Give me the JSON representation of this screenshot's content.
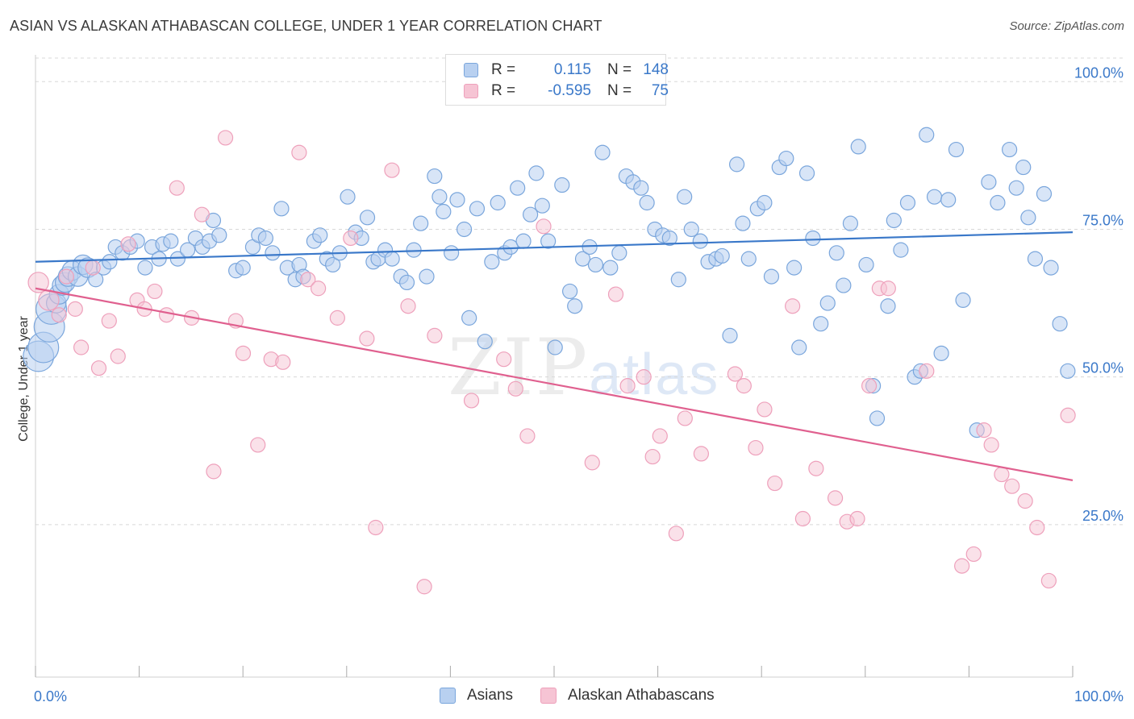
{
  "title": "ASIAN VS ALASKAN ATHABASCAN COLLEGE, UNDER 1 YEAR CORRELATION CHART",
  "source": "Source: ZipAtlas.com",
  "watermark": {
    "main": "ZIP",
    "sub": "atlas"
  },
  "colors": {
    "blue": "#3a78c9",
    "blue_fill": "#b8d0f0",
    "blue_stroke": "#7aa6dc",
    "pink": "#e0608f",
    "pink_fill": "#f6c4d4",
    "pink_stroke": "#eea0bb",
    "grid": "#d8d8d8"
  },
  "legend": {
    "rows": [
      {
        "r_label": "R =",
        "r_value": "0.115",
        "n_label": "N =",
        "n_value": "148"
      },
      {
        "r_label": "R =",
        "r_value": "-0.595",
        "n_label": "N =",
        "n_value": "75"
      }
    ]
  },
  "bottom_legend": [
    "Asians",
    "Alaskan Athabascans"
  ],
  "chart_data": {
    "type": "scatter",
    "title": "ASIAN VS ALASKAN ATHABASCAN COLLEGE, UNDER 1 YEAR CORRELATION CHART",
    "xlabel": "",
    "ylabel": "College, Under 1 year",
    "xlim": [
      0,
      100
    ],
    "ylim": [
      0,
      104
    ],
    "x_ticks": [
      "0.0%",
      "100.0%"
    ],
    "y_ticks": [
      {
        "value": 25,
        "label": "25.0%"
      },
      {
        "value": 50,
        "label": "50.0%"
      },
      {
        "value": 75,
        "label": "75.0%"
      },
      {
        "value": 100,
        "label": "100.0%"
      }
    ],
    "grid": true,
    "legend_position": "top-center",
    "series": [
      {
        "name": "Asians",
        "R": 0.115,
        "N": 148,
        "trend": [
          [
            0,
            69.5
          ],
          [
            100,
            74.5
          ]
        ],
        "points": [
          [
            0.3,
            53.5
          ],
          [
            0.8,
            55
          ],
          [
            1.4,
            58.5
          ],
          [
            1.6,
            61.5
          ],
          [
            2.1,
            62.5
          ],
          [
            2.4,
            64
          ],
          [
            2.7,
            65.5
          ],
          [
            3,
            66
          ],
          [
            3.3,
            67
          ],
          [
            3.7,
            68
          ],
          [
            4.3,
            67
          ],
          [
            4.8,
            69
          ],
          [
            5.3,
            68.5
          ],
          [
            6.1,
            66.5
          ],
          [
            6.9,
            68.5
          ],
          [
            7.5,
            69.5
          ],
          [
            8.1,
            72
          ],
          [
            8.8,
            71
          ],
          [
            9.6,
            72
          ],
          [
            10.3,
            73
          ],
          [
            11.1,
            68.5
          ],
          [
            11.8,
            72
          ],
          [
            12.5,
            70
          ],
          [
            12.9,
            72.5
          ],
          [
            13.7,
            73
          ],
          [
            14.4,
            70
          ],
          [
            15.4,
            71.5
          ],
          [
            16.2,
            73.5
          ],
          [
            16.9,
            72
          ],
          [
            17.6,
            73
          ],
          [
            18,
            76.5
          ],
          [
            18.6,
            74
          ],
          [
            20.3,
            68
          ],
          [
            21,
            68.5
          ],
          [
            22,
            72
          ],
          [
            22.6,
            74
          ],
          [
            23.3,
            73.5
          ],
          [
            24,
            71
          ],
          [
            24.9,
            78.5
          ],
          [
            25.5,
            68.5
          ],
          [
            26.3,
            66.5
          ],
          [
            26.7,
            69
          ],
          [
            27.1,
            67
          ],
          [
            28.2,
            73
          ],
          [
            28.8,
            74
          ],
          [
            29.5,
            70
          ],
          [
            30.1,
            69
          ],
          [
            30.8,
            71
          ],
          [
            31.6,
            80.5
          ],
          [
            32.4,
            74.5
          ],
          [
            33,
            73.5
          ],
          [
            33.6,
            77
          ],
          [
            34.2,
            69.5
          ],
          [
            34.7,
            70
          ],
          [
            35.4,
            71.5
          ],
          [
            36.1,
            70
          ],
          [
            37,
            67
          ],
          [
            37.6,
            66
          ],
          [
            38.3,
            71.5
          ],
          [
            39,
            76
          ],
          [
            39.6,
            67
          ],
          [
            40.4,
            84
          ],
          [
            40.9,
            80.5
          ],
          [
            41.3,
            78
          ],
          [
            42.1,
            71
          ],
          [
            42.7,
            80
          ],
          [
            43.4,
            75
          ],
          [
            43.9,
            60
          ],
          [
            44.7,
            78.5
          ],
          [
            45.5,
            56
          ],
          [
            46.2,
            69.5
          ],
          [
            46.8,
            79.5
          ],
          [
            47.5,
            71
          ],
          [
            48.1,
            72
          ],
          [
            48.8,
            82
          ],
          [
            49.4,
            73
          ],
          [
            50.1,
            77.5
          ],
          [
            50.7,
            84.5
          ],
          [
            51.3,
            79
          ],
          [
            51.9,
            73
          ],
          [
            52.6,
            55
          ],
          [
            53.3,
            82.5
          ],
          [
            54.1,
            64.5
          ],
          [
            54.6,
            62
          ],
          [
            55.4,
            70
          ],
          [
            56.1,
            72
          ],
          [
            56.7,
            69
          ],
          [
            57.4,
            88
          ],
          [
            58.2,
            68.5
          ],
          [
            59.1,
            71
          ],
          [
            59.8,
            84
          ],
          [
            60.5,
            83
          ],
          [
            61.3,
            82
          ],
          [
            61.9,
            79.5
          ],
          [
            62.7,
            75
          ],
          [
            63.5,
            74
          ],
          [
            64.2,
            73.5
          ],
          [
            65.1,
            66.5
          ],
          [
            65.7,
            80.5
          ],
          [
            66.4,
            75
          ],
          [
            67.3,
            73
          ],
          [
            68.1,
            69.5
          ],
          [
            68.9,
            70
          ],
          [
            69.5,
            70.5
          ],
          [
            70.3,
            57
          ],
          [
            71,
            86
          ],
          [
            71.6,
            76
          ],
          [
            72.2,
            70
          ],
          [
            73.1,
            78.5
          ],
          [
            73.8,
            79.5
          ],
          [
            74.5,
            67
          ],
          [
            75.3,
            85.5
          ],
          [
            76,
            87
          ],
          [
            76.8,
            68.5
          ],
          [
            77.3,
            55
          ],
          [
            78.1,
            84.5
          ],
          [
            78.7,
            73.5
          ],
          [
            79.5,
            59
          ],
          [
            80.2,
            62.5
          ],
          [
            81.1,
            71
          ],
          [
            81.8,
            65.5
          ],
          [
            82.5,
            76
          ],
          [
            83.3,
            89
          ],
          [
            84.1,
            69
          ],
          [
            84.8,
            48.5
          ],
          [
            85.2,
            43
          ],
          [
            86.3,
            62
          ],
          [
            86.9,
            76.5
          ],
          [
            87.6,
            71.5
          ],
          [
            88.3,
            79.5
          ],
          [
            89,
            50
          ],
          [
            89.6,
            51
          ],
          [
            90.2,
            91
          ],
          [
            91,
            80.5
          ],
          [
            91.7,
            54
          ],
          [
            92.4,
            80
          ],
          [
            93.2,
            88.5
          ],
          [
            93.9,
            63
          ],
          [
            95.3,
            41
          ],
          [
            96.5,
            83
          ],
          [
            97.4,
            79.5
          ],
          [
            98.6,
            88.5
          ],
          [
            99.3,
            82
          ],
          [
            100,
            85.5
          ],
          [
            100.5,
            77
          ],
          [
            101.2,
            70
          ],
          [
            102.1,
            81
          ],
          [
            102.8,
            68.5
          ],
          [
            103.7,
            59
          ],
          [
            104.5,
            51
          ]
        ]
      },
      {
        "name": "Alaskan Athabascans",
        "R": -0.595,
        "N": 75,
        "trend": [
          [
            0,
            65
          ],
          [
            100,
            32.5
          ]
        ],
        "points": [
          [
            0.2,
            66
          ],
          [
            0.9,
            63
          ],
          [
            1.6,
            60.5
          ],
          [
            2.1,
            67
          ],
          [
            2.7,
            61.5
          ],
          [
            3.1,
            55
          ],
          [
            3.9,
            68.5
          ],
          [
            4.3,
            51.5
          ],
          [
            5,
            59.5
          ],
          [
            5.6,
            53.5
          ],
          [
            6.3,
            72.5
          ],
          [
            6.9,
            63
          ],
          [
            7.4,
            61.5
          ],
          [
            8.1,
            64.5
          ],
          [
            8.9,
            60.5
          ],
          [
            9.6,
            82
          ],
          [
            10.6,
            60
          ],
          [
            11.3,
            77.5
          ],
          [
            12.1,
            34
          ],
          [
            12.9,
            90.5
          ],
          [
            13.6,
            59.5
          ],
          [
            14.1,
            54
          ],
          [
            15.1,
            38.5
          ],
          [
            16,
            53
          ],
          [
            16.8,
            52.5
          ],
          [
            17.9,
            88
          ],
          [
            18.5,
            66.5
          ],
          [
            19.2,
            65
          ],
          [
            20.5,
            60
          ],
          [
            21.4,
            73.5
          ],
          [
            22.5,
            56.5
          ],
          [
            23.1,
            24.5
          ],
          [
            24.2,
            85
          ],
          [
            25.3,
            62
          ],
          [
            26.4,
            14.5
          ],
          [
            27.1,
            57
          ],
          [
            29.6,
            46
          ],
          [
            31.8,
            53
          ],
          [
            32.6,
            48
          ],
          [
            33.4,
            40
          ],
          [
            34.5,
            75.5
          ],
          [
            37.8,
            35.5
          ],
          [
            39.4,
            64
          ],
          [
            40.2,
            48.5
          ],
          [
            41.3,
            50
          ],
          [
            41.9,
            36.5
          ],
          [
            42.4,
            40
          ],
          [
            43.5,
            23.5
          ],
          [
            44.1,
            43
          ],
          [
            45.2,
            37
          ],
          [
            47.5,
            50.5
          ],
          [
            48.1,
            48.5
          ],
          [
            48.9,
            38
          ],
          [
            49.5,
            44.5
          ],
          [
            50.2,
            32
          ],
          [
            51.4,
            62
          ],
          [
            52.1,
            26
          ],
          [
            53,
            34.5
          ],
          [
            54.3,
            29.5
          ],
          [
            55.1,
            25.5
          ],
          [
            55.8,
            26
          ],
          [
            56.6,
            48.5
          ],
          [
            57.3,
            65
          ],
          [
            57.9,
            65
          ],
          [
            60.5,
            51
          ],
          [
            62.9,
            18
          ],
          [
            63.7,
            20
          ],
          [
            64.4,
            41
          ],
          [
            64.9,
            38.5
          ],
          [
            65.6,
            33.5
          ],
          [
            66.3,
            31.5
          ],
          [
            67.2,
            29
          ],
          [
            68,
            24.5
          ],
          [
            68.8,
            15.5
          ],
          [
            70.1,
            43.5
          ]
        ]
      }
    ]
  }
}
